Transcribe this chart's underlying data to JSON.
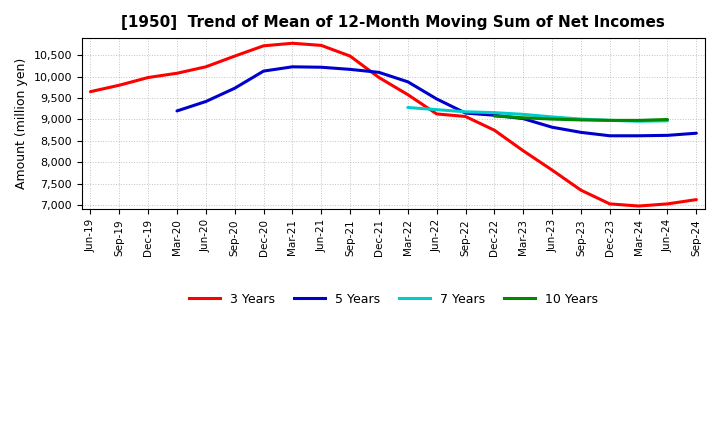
{
  "title": "[1950]  Trend of Mean of 12-Month Moving Sum of Net Incomes",
  "ylabel": "Amount (million yen)",
  "ylim": [
    6900,
    10900
  ],
  "yticks": [
    7000,
    7500,
    8000,
    8500,
    9000,
    9500,
    10000,
    10500
  ],
  "background_color": "#ffffff",
  "grid_color": "#999999",
  "x_labels": [
    "Jun-19",
    "Sep-19",
    "Dec-19",
    "Mar-20",
    "Jun-20",
    "Sep-20",
    "Dec-20",
    "Mar-21",
    "Jun-21",
    "Sep-21",
    "Dec-21",
    "Mar-22",
    "Jun-22",
    "Sep-22",
    "Dec-22",
    "Mar-23",
    "Jun-23",
    "Sep-23",
    "Dec-23",
    "Mar-24",
    "Jun-24",
    "Sep-24"
  ],
  "series": {
    "3 Years": {
      "color": "#ff0000",
      "data_x": [
        0,
        1,
        2,
        3,
        4,
        5,
        6,
        7,
        8,
        9,
        10,
        11,
        12,
        13,
        14,
        15,
        16,
        17,
        18,
        19,
        20,
        21
      ],
      "data_y": [
        9650,
        9800,
        9980,
        10080,
        10230,
        10480,
        10720,
        10780,
        10730,
        10480,
        9980,
        9580,
        9130,
        9070,
        8750,
        8270,
        7820,
        7350,
        7030,
        6980,
        7030,
        7130
      ]
    },
    "5 Years": {
      "color": "#0000cc",
      "data_x": [
        3,
        4,
        5,
        6,
        7,
        8,
        9,
        10,
        11,
        12,
        13,
        14,
        15,
        16,
        17,
        18,
        19,
        20,
        21
      ],
      "data_y": [
        9200,
        9420,
        9730,
        10130,
        10230,
        10220,
        10170,
        10100,
        9880,
        9480,
        9150,
        9100,
        9020,
        8820,
        8700,
        8620,
        8620,
        8630,
        8680
      ]
    },
    "7 Years": {
      "color": "#00cccc",
      "data_x": [
        11,
        12,
        13,
        14,
        15,
        16,
        17,
        18,
        19,
        20
      ],
      "data_y": [
        9280,
        9230,
        9180,
        9160,
        9120,
        9060,
        9010,
        8980,
        8960,
        8970
      ]
    },
    "10 Years": {
      "color": "#008800",
      "data_x": [
        14,
        15,
        16,
        17,
        18,
        19,
        20
      ],
      "data_y": [
        9080,
        9040,
        9010,
        8990,
        8980,
        8980,
        9000
      ]
    }
  },
  "legend_order": [
    "3 Years",
    "5 Years",
    "7 Years",
    "10 Years"
  ]
}
